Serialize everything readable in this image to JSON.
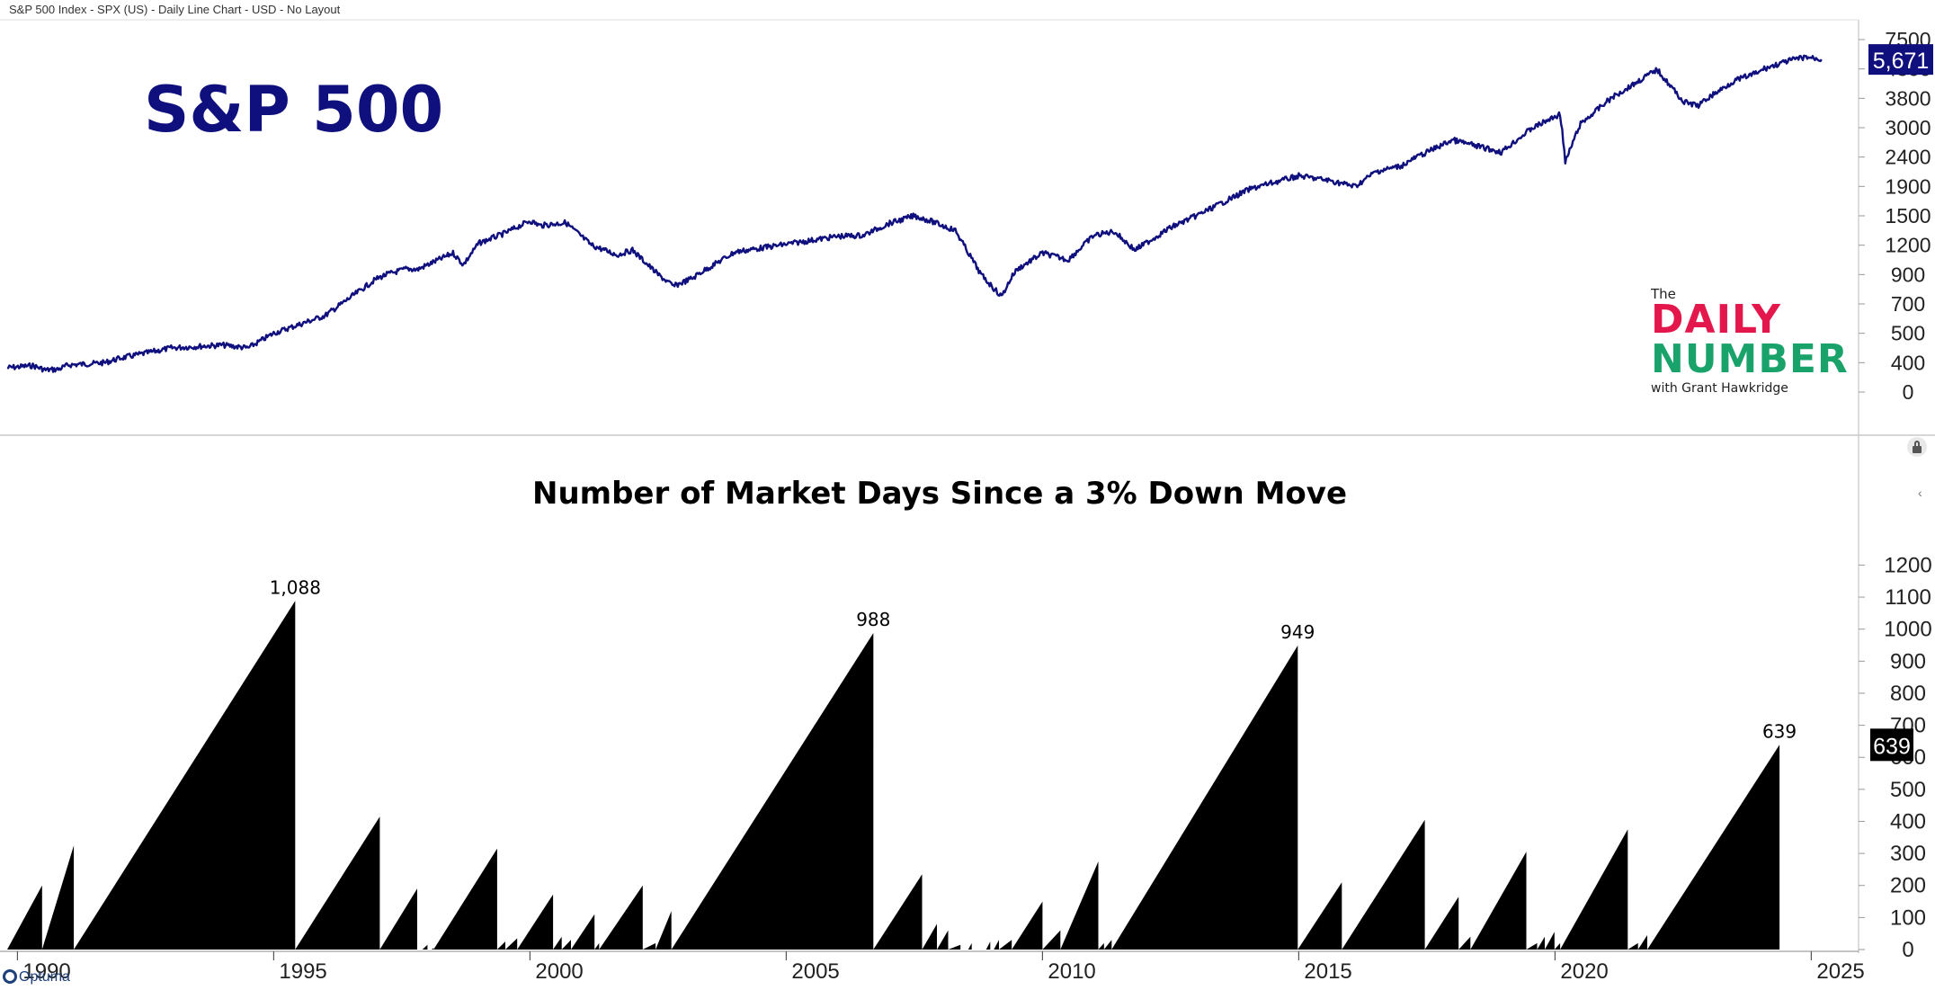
{
  "header": {
    "label": "S&P 500 Index - SPX (US) - Daily Line Chart - USD - No Layout"
  },
  "brand": {
    "the": "The",
    "line1": "DAILY",
    "line2": "NUMBER",
    "line3": "with Grant Hawkridge",
    "watermark": "Optuma"
  },
  "colors": {
    "price_line": "#0f0f7d",
    "price_badge": "#0f0f7d",
    "area_fill": "#000000",
    "title_price": "#0f0f7d"
  },
  "icons": {
    "lock": "lock-icon",
    "collapse": "chevron-left-icon",
    "watermark": "optuma-logo-icon"
  },
  "chart_data": [
    {
      "type": "line",
      "title": "S&P 500",
      "x_range": [
        1989.8,
        2025.8
      ],
      "y_ticks": [
        0,
        400,
        500,
        700,
        900,
        1200,
        1500,
        1900,
        2400,
        3000,
        3800,
        4800,
        7500
      ],
      "last_value_label": "5,671",
      "grid": false,
      "x": [
        1989.8,
        1990.3,
        1990.55,
        1990.8,
        1991.0,
        1991.3,
        1992.0,
        1993.0,
        1994.0,
        1994.5,
        1995.0,
        1996.0,
        1997.0,
        1997.6,
        1997.8,
        1998.5,
        1998.7,
        1999.0,
        1999.5,
        2000.0,
        2000.2,
        2000.7,
        2001.2,
        2001.7,
        2002.0,
        2002.5,
        2002.8,
        2003.2,
        2004.0,
        2005.0,
        2006.0,
        2006.5,
        2007.0,
        2007.5,
        2007.8,
        2008.3,
        2008.8,
        2009.2,
        2009.5,
        2010.0,
        2010.5,
        2011.0,
        2011.4,
        2011.8,
        2012.5,
        2013.0,
        2014.0,
        2015.0,
        2015.6,
        2016.1,
        2016.5,
        2017.0,
        2018.0,
        2018.95,
        2019.5,
        2020.1,
        2020.2,
        2020.5,
        2021.0,
        2021.99,
        2022.5,
        2022.8,
        2023.5,
        2024.0,
        2024.6,
        2024.9,
        2025.2
      ],
      "y": [
        330,
        360,
        300,
        310,
        370,
        380,
        415,
        450,
        460,
        450,
        500,
        620,
        870,
        960,
        950,
        1120,
        1000,
        1220,
        1320,
        1450,
        1400,
        1430,
        1200,
        1100,
        1150,
        900,
        820,
        880,
        1130,
        1210,
        1290,
        1300,
        1420,
        1500,
        1450,
        1350,
        900,
        750,
        950,
        1120,
        1050,
        1300,
        1340,
        1150,
        1380,
        1500,
        1850,
        2080,
        2000,
        1900,
        2150,
        2250,
        2750,
        2500,
        2950,
        3370,
        2300,
        3100,
        3700,
        4780,
        3700,
        3600,
        4400,
        4700,
        5600,
        5900,
        5671
      ]
    },
    {
      "type": "area",
      "title": "Number of Market Days Since a 3% Down Move",
      "x_range": [
        1989.8,
        2025.8
      ],
      "ylim": [
        0,
        1260
      ],
      "y_ticks": [
        0,
        100,
        200,
        300,
        400,
        500,
        600,
        700,
        800,
        900,
        1000,
        1100,
        1200
      ],
      "x_ticks": [
        "1990",
        "1995",
        "2000",
        "2005",
        "2010",
        "2015",
        "2020",
        "2025"
      ],
      "last_value_label": "639",
      "peaks": [
        {
          "start": 1989.8,
          "end": 1990.48,
          "value": 200
        },
        {
          "start": 1990.48,
          "end": 1991.1,
          "value": 325
        },
        {
          "start": 1991.1,
          "end": 1995.42,
          "value": 1088,
          "label": "1,088"
        },
        {
          "start": 1995.42,
          "end": 1997.07,
          "value": 415
        },
        {
          "start": 1997.07,
          "end": 1997.8,
          "value": 190
        },
        {
          "start": 1997.9,
          "end": 1998.0,
          "value": 15
        },
        {
          "start": 1998.08,
          "end": 1998.12,
          "value": 5
        },
        {
          "start": 1998.12,
          "end": 1999.36,
          "value": 315
        },
        {
          "start": 1999.36,
          "end": 1999.52,
          "value": 25
        },
        {
          "start": 1999.52,
          "end": 1999.75,
          "value": 35
        },
        {
          "start": 1999.75,
          "end": 2000.45,
          "value": 172
        },
        {
          "start": 2000.45,
          "end": 2000.62,
          "value": 40
        },
        {
          "start": 2000.62,
          "end": 2000.8,
          "value": 30
        },
        {
          "start": 2000.8,
          "end": 2001.26,
          "value": 110
        },
        {
          "start": 2001.26,
          "end": 2001.35,
          "value": 20
        },
        {
          "start": 2001.35,
          "end": 2002.2,
          "value": 200
        },
        {
          "start": 2002.2,
          "end": 2002.45,
          "value": 20
        },
        {
          "start": 2002.45,
          "end": 2002.76,
          "value": 120
        },
        {
          "start": 2002.76,
          "end": 2006.7,
          "value": 988,
          "label": "988"
        },
        {
          "start": 2006.7,
          "end": 2007.65,
          "value": 235
        },
        {
          "start": 2007.65,
          "end": 2007.94,
          "value": 80
        },
        {
          "start": 2007.94,
          "end": 2008.16,
          "value": 60
        },
        {
          "start": 2008.16,
          "end": 2008.4,
          "value": 15
        },
        {
          "start": 2008.55,
          "end": 2008.62,
          "value": 20
        },
        {
          "start": 2008.9,
          "end": 2008.98,
          "value": 25
        },
        {
          "start": 2009.05,
          "end": 2009.15,
          "value": 30
        },
        {
          "start": 2009.15,
          "end": 2009.4,
          "value": 30
        },
        {
          "start": 2009.4,
          "end": 2010.0,
          "value": 150
        },
        {
          "start": 2010.0,
          "end": 2010.35,
          "value": 60
        },
        {
          "start": 2010.35,
          "end": 2011.09,
          "value": 275
        },
        {
          "start": 2011.09,
          "end": 2011.2,
          "value": 20
        },
        {
          "start": 2011.2,
          "end": 2011.35,
          "value": 30
        },
        {
          "start": 2011.35,
          "end": 2014.98,
          "value": 949,
          "label": "949"
        },
        {
          "start": 2014.98,
          "end": 2015.84,
          "value": 210
        },
        {
          "start": 2015.84,
          "end": 2017.46,
          "value": 405
        },
        {
          "start": 2017.46,
          "end": 2018.12,
          "value": 165
        },
        {
          "start": 2018.12,
          "end": 2018.35,
          "value": 40
        },
        {
          "start": 2018.35,
          "end": 2019.44,
          "value": 305
        },
        {
          "start": 2019.44,
          "end": 2019.65,
          "value": 20
        },
        {
          "start": 2019.65,
          "end": 2019.8,
          "value": 40
        },
        {
          "start": 2019.8,
          "end": 2019.99,
          "value": 55
        },
        {
          "start": 2019.99,
          "end": 2020.1,
          "value": 20
        },
        {
          "start": 2020.1,
          "end": 2021.42,
          "value": 375
        },
        {
          "start": 2021.42,
          "end": 2021.62,
          "value": 20
        },
        {
          "start": 2021.62,
          "end": 2021.8,
          "value": 45
        },
        {
          "start": 2021.8,
          "end": 2024.38,
          "value": 639,
          "label": "639"
        }
      ]
    }
  ]
}
